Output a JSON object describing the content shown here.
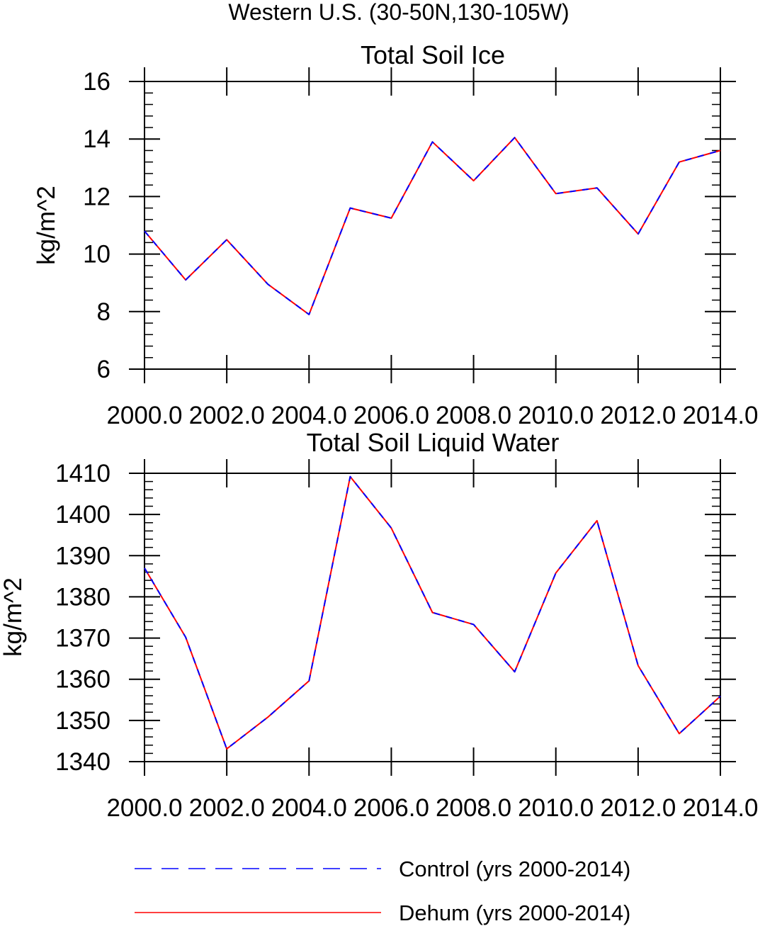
{
  "figure": {
    "title": "Western U.S. (30-50N,130-105W)"
  },
  "legend": [
    {
      "label": "Control (yrs 2000-2014)",
      "color": "#0000ff",
      "style": "dashed"
    },
    {
      "label": "Dehum (yrs 2000-2014)",
      "color": "#ff0000",
      "style": "solid"
    }
  ],
  "chart_data": [
    {
      "type": "line",
      "title": "Total Soil Ice",
      "xlabel": "",
      "ylabel": "kg/m^2",
      "xlim": [
        2000,
        2014
      ],
      "ylim": [
        6,
        16
      ],
      "x_ticks": [
        2000,
        2002,
        2004,
        2006,
        2008,
        2010,
        2012,
        2014
      ],
      "x_tick_labels": [
        "2000.0",
        "2002.0",
        "2004.0",
        "2006.0",
        "2008.0",
        "2010.0",
        "2012.0",
        "2014.0"
      ],
      "y_ticks": [
        6,
        8,
        10,
        12,
        14,
        16
      ],
      "y_tick_labels": [
        "6",
        "8",
        "10",
        "12",
        "14",
        "16"
      ],
      "x": [
        2000,
        2001,
        2002,
        2003,
        2004,
        2005,
        2006,
        2007,
        2008,
        2009,
        2010,
        2011,
        2012,
        2013,
        2014
      ],
      "series": [
        {
          "name": "Control (yrs 2000-2014)",
          "color": "#0000ff",
          "style": "dashed",
          "values": [
            10.8,
            9.1,
            10.5,
            8.95,
            7.9,
            11.6,
            11.25,
            13.9,
            12.55,
            14.05,
            12.1,
            12.3,
            10.7,
            13.2,
            13.6
          ]
        },
        {
          "name": "Dehum (yrs 2000-2014)",
          "color": "#ff0000",
          "style": "solid",
          "values": [
            10.8,
            9.1,
            10.5,
            8.95,
            7.9,
            11.6,
            11.25,
            13.9,
            12.55,
            14.05,
            12.1,
            12.3,
            10.7,
            13.2,
            13.6
          ]
        }
      ]
    },
    {
      "type": "line",
      "title": "Total Soil Liquid Water",
      "xlabel": "",
      "ylabel": "kg/m^2",
      "xlim": [
        2000,
        2014
      ],
      "ylim": [
        1340,
        1410
      ],
      "x_ticks": [
        2000,
        2002,
        2004,
        2006,
        2008,
        2010,
        2012,
        2014
      ],
      "x_tick_labels": [
        "2000.0",
        "2002.0",
        "2004.0",
        "2006.0",
        "2008.0",
        "2010.0",
        "2012.0",
        "2014.0"
      ],
      "y_ticks": [
        1340,
        1350,
        1360,
        1370,
        1380,
        1390,
        1400,
        1410
      ],
      "y_tick_labels": [
        "1340",
        "1350",
        "1360",
        "1370",
        "1380",
        "1390",
        "1400",
        "1410"
      ],
      "x": [
        2000,
        2001,
        2002,
        2003,
        2004,
        2005,
        2006,
        2007,
        2008,
        2009,
        2010,
        2011,
        2012,
        2013,
        2014
      ],
      "series": [
        {
          "name": "Control (yrs 2000-2014)",
          "color": "#0000ff",
          "style": "dashed",
          "values": [
            1387,
            1370.2,
            1343.1,
            1350.8,
            1359.6,
            1409.2,
            1396.7,
            1376.2,
            1373.3,
            1361.8,
            1385.8,
            1398.5,
            1363.3,
            1346.8,
            1355.9
          ]
        },
        {
          "name": "Dehum (yrs 2000-2014)",
          "color": "#ff0000",
          "style": "solid",
          "values": [
            1387,
            1370.2,
            1343.1,
            1350.8,
            1359.6,
            1409.2,
            1396.7,
            1376.2,
            1373.3,
            1361.8,
            1385.8,
            1398.5,
            1363.3,
            1346.8,
            1355.9
          ]
        }
      ]
    }
  ]
}
